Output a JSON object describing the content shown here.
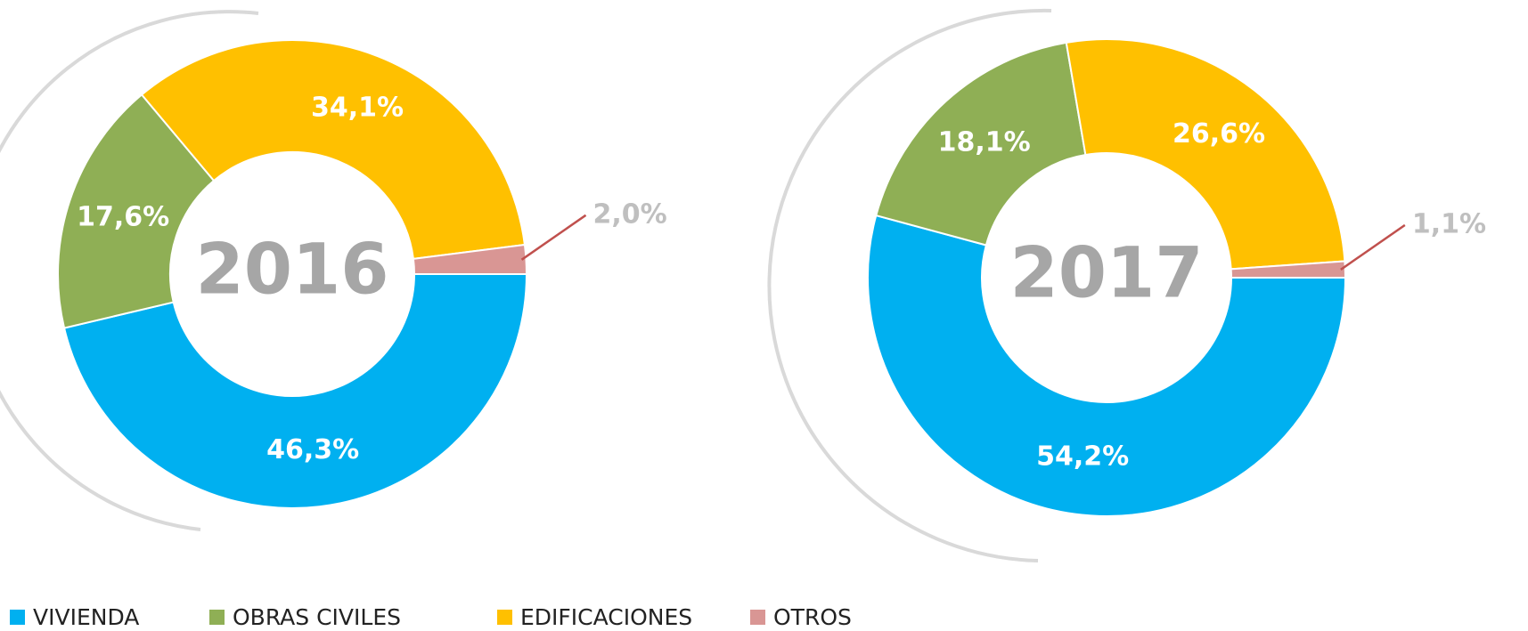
{
  "chart_data": [
    {
      "type": "donut",
      "title": "2016",
      "categories": [
        "VIVIENDA",
        "OBRAS CIVILES",
        "EDIFICACIONES",
        "OTROS"
      ],
      "values": [
        46.3,
        17.6,
        34.1,
        2.0
      ],
      "value_labels": [
        "46,3%",
        "17,6%",
        "34,1%",
        "2,0%"
      ],
      "colors": [
        "#00b0f0",
        "#8faf55",
        "#ffc000",
        "#d99694"
      ]
    },
    {
      "type": "donut",
      "title": "2017",
      "categories": [
        "VIVIENDA",
        "OBRAS CIVILES",
        "EDIFICACIONES",
        "OTROS"
      ],
      "values": [
        54.2,
        18.1,
        26.6,
        1.1
      ],
      "value_labels": [
        "54,2%",
        "18,1%",
        "26,6%",
        "1,1%"
      ],
      "colors": [
        "#00b0f0",
        "#8faf55",
        "#ffc000",
        "#d99694"
      ]
    }
  ]
}
